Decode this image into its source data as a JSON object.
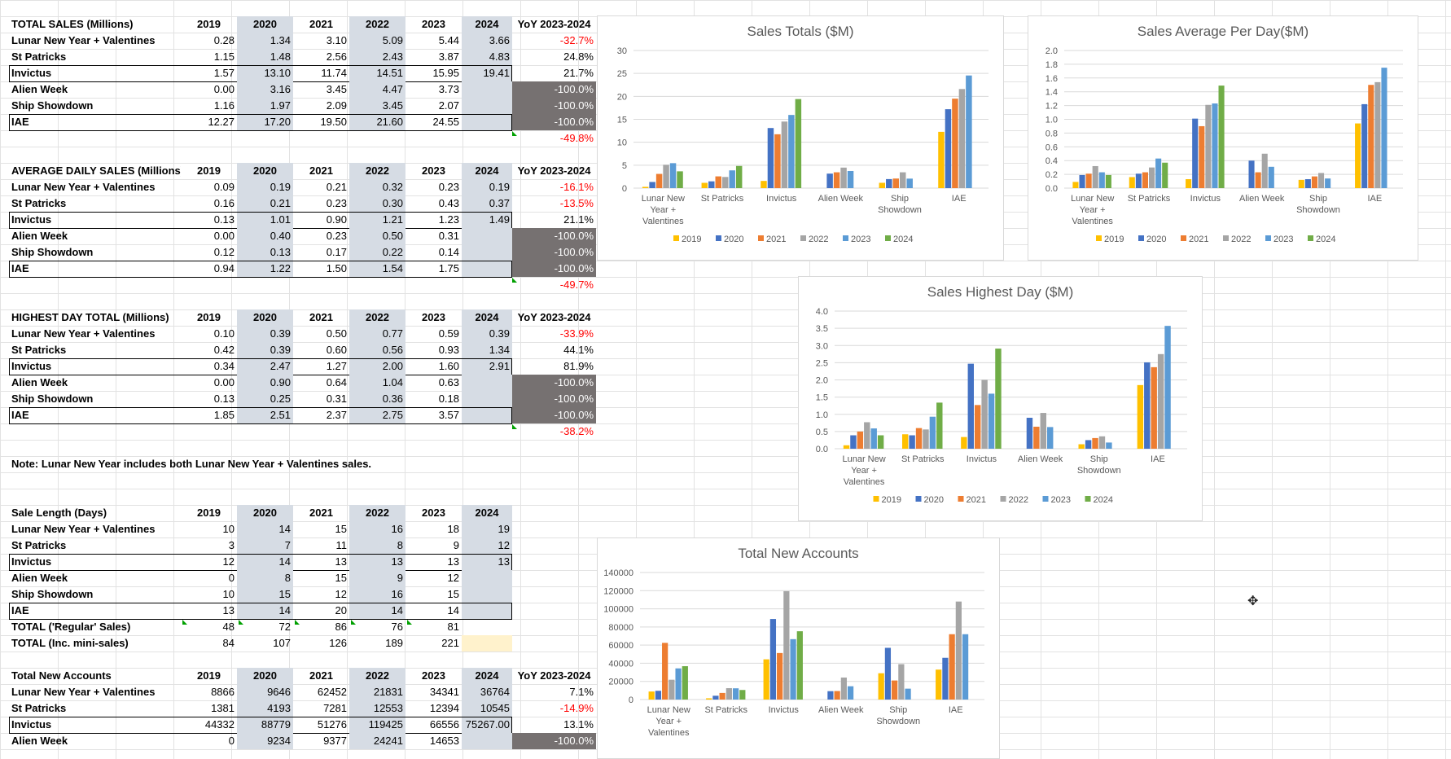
{
  "tables": [
    {
      "header": "TOTAL SALES (Millions)",
      "years": [
        "2019",
        "2020",
        "2021",
        "2022",
        "2023",
        "2024"
      ],
      "yoy_header": "YoY 2023-2024",
      "rows": [
        {
          "name": "Lunar New Year + Valentines",
          "values": [
            "0.28",
            "1.34",
            "3.10",
            "5.09",
            "5.44",
            "3.66"
          ],
          "yoy": "-32.7%"
        },
        {
          "name": "St Patricks",
          "values": [
            "1.15",
            "1.48",
            "2.56",
            "2.43",
            "3.87",
            "4.83"
          ],
          "yoy": "24.8%"
        },
        {
          "name": "Invictus",
          "values": [
            "1.57",
            "13.10",
            "11.74",
            "14.51",
            "15.95",
            "19.41"
          ],
          "yoy": "21.7%"
        },
        {
          "name": "Alien Week",
          "values": [
            "0.00",
            "3.16",
            "3.45",
            "4.47",
            "3.73",
            ""
          ],
          "yoy": "-100.0%"
        },
        {
          "name": "Ship Showdown",
          "values": [
            "1.16",
            "1.97",
            "2.09",
            "3.45",
            "2.07",
            ""
          ],
          "yoy": "-100.0%"
        },
        {
          "name": "IAE",
          "values": [
            "12.27",
            "17.20",
            "19.50",
            "21.60",
            "24.55",
            ""
          ],
          "yoy": "-100.0%"
        }
      ],
      "total_yoy": "-49.8%"
    },
    {
      "header": "AVERAGE DAILY SALES (Millions)",
      "years": [
        "2019",
        "2020",
        "2021",
        "2022",
        "2023",
        "2024"
      ],
      "yoy_header": "YoY 2023-2024",
      "rows": [
        {
          "name": "Lunar New Year + Valentines",
          "values": [
            "0.09",
            "0.19",
            "0.21",
            "0.32",
            "0.23",
            "0.19"
          ],
          "yoy": "-16.1%"
        },
        {
          "name": "St Patricks",
          "values": [
            "0.16",
            "0.21",
            "0.23",
            "0.30",
            "0.43",
            "0.37"
          ],
          "yoy": "-13.5%"
        },
        {
          "name": "Invictus",
          "values": [
            "0.13",
            "1.01",
            "0.90",
            "1.21",
            "1.23",
            "1.49"
          ],
          "yoy": "21.1%"
        },
        {
          "name": "Alien Week",
          "values": [
            "0.00",
            "0.40",
            "0.23",
            "0.50",
            "0.31",
            ""
          ],
          "yoy": "-100.0%"
        },
        {
          "name": "Ship Showdown",
          "values": [
            "0.12",
            "0.13",
            "0.17",
            "0.22",
            "0.14",
            ""
          ],
          "yoy": "-100.0%"
        },
        {
          "name": "IAE",
          "values": [
            "0.94",
            "1.22",
            "1.50",
            "1.54",
            "1.75",
            ""
          ],
          "yoy": "-100.0%"
        }
      ],
      "total_yoy": "-49.7%"
    },
    {
      "header": "HIGHEST DAY TOTAL (Millions)",
      "years": [
        "2019",
        "2020",
        "2021",
        "2022",
        "2023",
        "2024"
      ],
      "yoy_header": "YoY 2023-2024",
      "rows": [
        {
          "name": "Lunar New Year + Valentines",
          "values": [
            "0.10",
            "0.39",
            "0.50",
            "0.77",
            "0.59",
            "0.39"
          ],
          "yoy": "-33.9%"
        },
        {
          "name": "St Patricks",
          "values": [
            "0.42",
            "0.39",
            "0.60",
            "0.56",
            "0.93",
            "1.34"
          ],
          "yoy": "44.1%"
        },
        {
          "name": "Invictus",
          "values": [
            "0.34",
            "2.47",
            "1.27",
            "2.00",
            "1.60",
            "2.91"
          ],
          "yoy": "81.9%"
        },
        {
          "name": "Alien Week",
          "values": [
            "0.00",
            "0.90",
            "0.64",
            "1.04",
            "0.63",
            ""
          ],
          "yoy": "-100.0%"
        },
        {
          "name": "Ship Showdown",
          "values": [
            "0.13",
            "0.25",
            "0.31",
            "0.36",
            "0.18",
            ""
          ],
          "yoy": "-100.0%"
        },
        {
          "name": "IAE",
          "values": [
            "1.85",
            "2.51",
            "2.37",
            "2.75",
            "3.57",
            ""
          ],
          "yoy": "-100.0%"
        }
      ],
      "total_yoy": "-38.2%"
    }
  ],
  "note": "Note: Lunar New Year includes both Lunar New Year + Valentines sales.",
  "sale_length": {
    "header": "Sale Length (Days)",
    "years": [
      "2019",
      "2020",
      "2021",
      "2022",
      "2023",
      "2024"
    ],
    "rows": [
      {
        "name": "Lunar New Year + Valentines",
        "values": [
          "10",
          "14",
          "15",
          "16",
          "18",
          "19"
        ]
      },
      {
        "name": "St Patricks",
        "values": [
          "3",
          "7",
          "11",
          "8",
          "9",
          "12"
        ]
      },
      {
        "name": "Invictus",
        "values": [
          "12",
          "14",
          "13",
          "13",
          "13",
          "13"
        ]
      },
      {
        "name": "Alien Week",
        "values": [
          "0",
          "8",
          "15",
          "9",
          "12",
          ""
        ]
      },
      {
        "name": "Ship Showdown",
        "values": [
          "10",
          "15",
          "12",
          "16",
          "15",
          ""
        ]
      },
      {
        "name": "IAE",
        "values": [
          "13",
          "14",
          "20",
          "14",
          "14",
          ""
        ]
      },
      {
        "name": "TOTAL ('Regular' Sales)",
        "values": [
          "48",
          "72",
          "86",
          "76",
          "81",
          ""
        ]
      },
      {
        "name": "TOTAL (Inc. mini-sales)",
        "values": [
          "84",
          "107",
          "126",
          "189",
          "221",
          ""
        ]
      }
    ]
  },
  "new_accounts": {
    "header": "Total New Accounts",
    "years": [
      "2019",
      "2020",
      "2021",
      "2022",
      "2023",
      "2024"
    ],
    "yoy_header": "YoY 2023-2024",
    "rows": [
      {
        "name": "Lunar New Year + Valentines",
        "values": [
          "8866",
          "9646",
          "62452",
          "21831",
          "34341",
          "36764"
        ],
        "yoy": "7.1%"
      },
      {
        "name": "St Patricks",
        "values": [
          "1381",
          "4193",
          "7281",
          "12553",
          "12394",
          "10545"
        ],
        "yoy": "-14.9%"
      },
      {
        "name": "Invictus",
        "values": [
          "44332",
          "88779",
          "51276",
          "119425",
          "66556",
          "75267.00"
        ],
        "yoy": "13.1%"
      },
      {
        "name": "Alien Week",
        "values": [
          "0",
          "9234",
          "9377",
          "24241",
          "14653",
          ""
        ],
        "yoy": "-100.0%"
      }
    ]
  },
  "colors": {
    "2019": "#ffc000",
    "2020": "#4472c4",
    "2021": "#ed7d31",
    "2022": "#a5a5a5",
    "2023": "#5b9bd5",
    "2024": "#70ad47"
  },
  "chart_data": [
    {
      "type": "bar",
      "title": "Sales Totals ($M)",
      "categories": [
        "Lunar New Year + Valentines",
        "St Patricks",
        "Invictus",
        "Alien Week",
        "Ship Showdown",
        "IAE"
      ],
      "ylim": [
        0,
        30
      ],
      "yticks": [
        0,
        5,
        10,
        15,
        20,
        25,
        30
      ],
      "series": [
        {
          "name": "2019",
          "values": [
            0.28,
            1.15,
            1.57,
            0,
            1.16,
            12.27
          ]
        },
        {
          "name": "2020",
          "values": [
            1.34,
            1.48,
            13.1,
            3.16,
            1.97,
            17.2
          ]
        },
        {
          "name": "2021",
          "values": [
            3.1,
            2.56,
            11.74,
            3.45,
            2.09,
            19.5
          ]
        },
        {
          "name": "2022",
          "values": [
            5.09,
            2.43,
            14.51,
            4.47,
            3.45,
            21.6
          ]
        },
        {
          "name": "2023",
          "values": [
            5.44,
            3.87,
            15.95,
            3.73,
            2.07,
            24.55
          ]
        },
        {
          "name": "2024",
          "values": [
            3.66,
            4.83,
            19.41,
            0,
            0,
            0
          ]
        }
      ],
      "legend": "bottom"
    },
    {
      "type": "bar",
      "title": "Sales Average Per Day($M)",
      "categories": [
        "Lunar New Year + Valentines",
        "St Patricks",
        "Invictus",
        "Alien Week",
        "Ship Showdown",
        "IAE"
      ],
      "ylim": [
        0,
        2
      ],
      "yticks": [
        0.0,
        0.2,
        0.4,
        0.6,
        0.8,
        1.0,
        1.2,
        1.4,
        1.6,
        1.8,
        2.0
      ],
      "series": [
        {
          "name": "2019",
          "values": [
            0.09,
            0.16,
            0.13,
            0,
            0.12,
            0.94
          ]
        },
        {
          "name": "2020",
          "values": [
            0.19,
            0.21,
            1.01,
            0.4,
            0.13,
            1.22
          ]
        },
        {
          "name": "2021",
          "values": [
            0.21,
            0.23,
            0.9,
            0.23,
            0.17,
            1.5
          ]
        },
        {
          "name": "2022",
          "values": [
            0.32,
            0.3,
            1.21,
            0.5,
            0.22,
            1.54
          ]
        },
        {
          "name": "2023",
          "values": [
            0.23,
            0.43,
            1.23,
            0.31,
            0.14,
            1.75
          ]
        },
        {
          "name": "2024",
          "values": [
            0.19,
            0.37,
            1.49,
            0,
            0,
            0
          ]
        }
      ],
      "legend": "bottom"
    },
    {
      "type": "bar",
      "title": "Sales Highest Day ($M)",
      "categories": [
        "Lunar New Year + Valentines",
        "St Patricks",
        "Invictus",
        "Alien Week",
        "Ship Showdown",
        "IAE"
      ],
      "ylim": [
        0,
        4
      ],
      "yticks": [
        0.0,
        0.5,
        1.0,
        1.5,
        2.0,
        2.5,
        3.0,
        3.5,
        4.0
      ],
      "series": [
        {
          "name": "2019",
          "values": [
            0.1,
            0.42,
            0.34,
            0,
            0.13,
            1.85
          ]
        },
        {
          "name": "2020",
          "values": [
            0.39,
            0.39,
            2.47,
            0.9,
            0.25,
            2.51
          ]
        },
        {
          "name": "2021",
          "values": [
            0.5,
            0.6,
            1.27,
            0.64,
            0.31,
            2.37
          ]
        },
        {
          "name": "2022",
          "values": [
            0.77,
            0.56,
            2.0,
            1.04,
            0.36,
            2.75
          ]
        },
        {
          "name": "2023",
          "values": [
            0.59,
            0.93,
            1.6,
            0.63,
            0.18,
            3.57
          ]
        },
        {
          "name": "2024",
          "values": [
            0.39,
            1.34,
            2.91,
            0,
            0,
            0
          ]
        }
      ],
      "legend": "bottom"
    },
    {
      "type": "bar",
      "title": "Total New Accounts",
      "categories": [
        "Lunar New Year + Valentines",
        "St Patricks",
        "Invictus",
        "Alien Week",
        "Ship Showdown",
        "IAE"
      ],
      "ylim": [
        0,
        140000
      ],
      "yticks": [
        0,
        20000,
        40000,
        60000,
        80000,
        100000,
        120000,
        140000
      ],
      "series": [
        {
          "name": "2019",
          "values": [
            8866,
            1381,
            44332,
            0,
            29000,
            33000
          ]
        },
        {
          "name": "2020",
          "values": [
            9646,
            4193,
            88779,
            9234,
            57000,
            46000
          ]
        },
        {
          "name": "2021",
          "values": [
            62452,
            7281,
            51276,
            9377,
            21000,
            72000
          ]
        },
        {
          "name": "2022",
          "values": [
            21831,
            12553,
            119425,
            24241,
            39000,
            108000
          ]
        },
        {
          "name": "2023",
          "values": [
            34341,
            12394,
            66556,
            14653,
            12000,
            72000
          ]
        },
        {
          "name": "2024",
          "values": [
            36764,
            10545,
            75267,
            0,
            0,
            0
          ]
        }
      ],
      "legend": "none"
    }
  ]
}
